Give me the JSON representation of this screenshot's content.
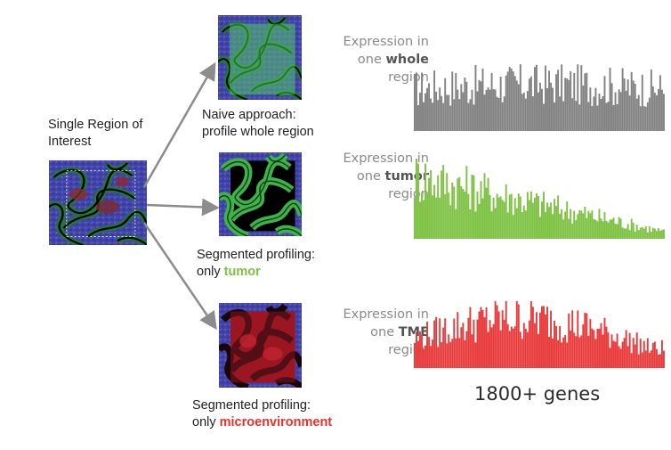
{
  "source": {
    "title_line1": "Single Region of",
    "title_line2": "Interest"
  },
  "panels": [
    {
      "caption_line1": "Naive approach:",
      "caption_line2": "profile whole region",
      "caption_highlight": "",
      "expr_line1": "Expression in",
      "expr_prefix": "one",
      "expr_bold": "whole",
      "expr_line3": "region",
      "color": "#828282"
    },
    {
      "caption_line1": "Segmented profiling:",
      "caption_line2": "only",
      "caption_highlight": "tumor",
      "expr_line1": "Expression in",
      "expr_prefix": "one",
      "expr_bold": "tumor",
      "expr_line3": "region",
      "color": "#7dc242"
    },
    {
      "caption_line1": "Segmented profiling:",
      "caption_line2": "only",
      "caption_highlight": "microenvironment",
      "expr_line1": "Expression in",
      "expr_prefix": "one",
      "expr_bold": "TME",
      "expr_line3": "region",
      "color": "#e83a3a"
    }
  ],
  "colors": {
    "tumor_highlight": "#7dc242",
    "tme_highlight": "#e8312a",
    "arrow": "#8c8c8c"
  },
  "footer": {
    "genes_label": "1800+ genes"
  }
}
